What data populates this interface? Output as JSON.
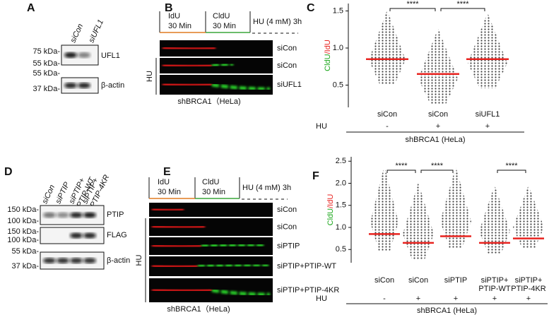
{
  "panels": {
    "a": {
      "label": "A",
      "lanes": [
        "siCon",
        "siUFL1"
      ],
      "markers": [
        "75 kDa-",
        "55 kDa-",
        "55 kDa-",
        "37 kDa-"
      ],
      "bands": [
        "UFL1",
        "β-actin"
      ]
    },
    "b": {
      "label": "B",
      "timeline": [
        "IdU",
        "30 Min",
        "CldU",
        "30 Min",
        "HU (4 mM) 3h"
      ],
      "conditions": [
        "siCon",
        "siCon",
        "siUFL1"
      ],
      "treatment": "HU",
      "cell_line": "shBRCA1（HeLa)"
    },
    "d": {
      "label": "D",
      "lanes": [
        "siCon",
        "siPTIP",
        "siPTIP+\nPTIP-WT",
        "siPTIP+\nPTIP-4KR"
      ],
      "markers": [
        "150 kDa-",
        "100 kDa-",
        "150 kDa-",
        "100 kDa-",
        "55 kDa-",
        "37 kDa-"
      ],
      "bands": [
        "PTIP",
        "FLAG",
        "β-actin"
      ]
    },
    "e": {
      "label": "E",
      "timeline": [
        "IdU",
        "30 Min",
        "CldU",
        "30 Min",
        "HU (4 mM) 3h"
      ],
      "conditions": [
        "siCon",
        "siCon",
        "siPTIP",
        "siPTIP+PTIP-WT",
        "siPTIP+PTIP-4KR"
      ],
      "treatment": "HU",
      "cell_line": "shBRCA1（HeLa)"
    }
  },
  "chart_data": [
    {
      "type": "dot",
      "label": "C",
      "y_label": [
        "CldU",
        "/IdU"
      ],
      "categories": [
        "siCon",
        "siCon",
        "siUFL1"
      ],
      "treatment": "HU",
      "treatment_signs": [
        "-",
        "+",
        "+"
      ],
      "cell_line": "shBRCA1 (HeLa)",
      "values": [
        0.85,
        0.65,
        0.85
      ],
      "color": "#e8231f",
      "significance": [
        "****",
        "****"
      ],
      "ylim": [
        0.2,
        1.6
      ],
      "yticks": [
        0.5,
        {
          "value": 1,
          "label": "1.0"
        },
        1.5
      ]
    },
    {
      "type": "dot",
      "label": "F",
      "y_label": [
        "CldU",
        "/IdU"
      ],
      "categories": [
        "siCon",
        "siCon",
        "siPTIP",
        "siPTIP+\nPTIP-WT",
        "siPTIP+\nPTIP-4KR"
      ],
      "treatment": "HU",
      "treatment_signs": [
        "-",
        "+",
        "+",
        "+",
        "+"
      ],
      "cell_line": "shBRCA1 (HeLa)",
      "values": [
        0.85,
        0.65,
        0.8,
        0.65,
        0.75
      ],
      "color": "#e8231f",
      "significance": [
        "****",
        "****",
        "****"
      ],
      "ylim": [
        0.2,
        2.6
      ],
      "yticks": [
        0.5,
        {
          "value": 1,
          "label": "1.0"
        },
        1.5,
        {
          "value": 2,
          "label": "2.0"
        },
        2.5
      ]
    }
  ]
}
